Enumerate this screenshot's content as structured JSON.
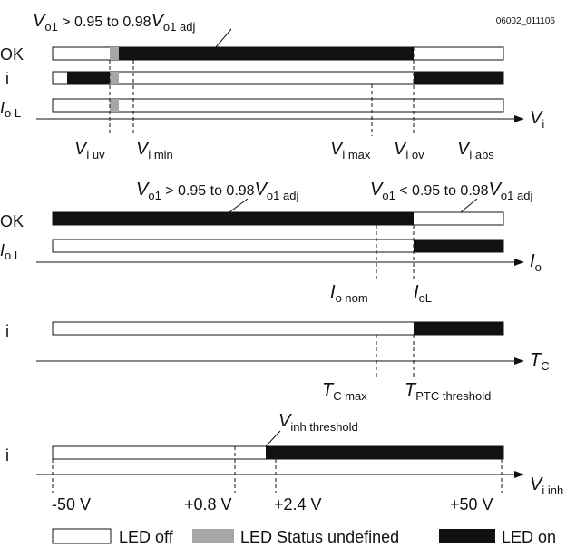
{
  "figure_id": "06002_011106",
  "colors": {
    "off": "#ffffff",
    "undefined": "#a6a6a6",
    "on": "#111111"
  },
  "panel1": {
    "rows": [
      "OK",
      "i",
      "I",
      "o L"
    ],
    "annotation": {
      "V": "V",
      "sub": "o1",
      "mid": " > 0.95 to 0.98",
      "V2": "V",
      "sub2": "o1 adj"
    },
    "axis": {
      "main": "V",
      "sub": "i"
    },
    "ticks": [
      {
        "main": "V",
        "sub": "i uv"
      },
      {
        "main": "V",
        "sub": "i min"
      },
      {
        "main": "V",
        "sub": "i max"
      },
      {
        "main": "V",
        "sub": "i ov"
      },
      {
        "main": "V",
        "sub": "i abs"
      }
    ]
  },
  "panel2": {
    "rows": [
      "OK",
      "I",
      "o L"
    ],
    "annotation_left": {
      "V": "V",
      "sub": "o1",
      "mid": " > 0.95 to 0.98",
      "V2": "V",
      "sub2": "o1 adj"
    },
    "annotation_right": {
      "V": "V",
      "sub": "o1",
      "mid": " < 0.95 to 0.98",
      "V2": "V",
      "sub2": "o1 adj"
    },
    "axis": {
      "main": "I",
      "sub": "o"
    },
    "ticks": [
      {
        "main": "I",
        "sub": "o nom"
      },
      {
        "main": "I",
        "sub": "oL"
      }
    ]
  },
  "panel3": {
    "rows": [
      "i"
    ],
    "axis": {
      "main": "T",
      "sub": "C"
    },
    "ticks": [
      {
        "main": "T",
        "sub": "C max"
      },
      {
        "main": "T",
        "sub": "PTC threshold"
      }
    ]
  },
  "panel4": {
    "rows": [
      "i"
    ],
    "annotation": {
      "main": "V",
      "sub": "inh threshold"
    },
    "axis": {
      "main": "V",
      "sub": "i inh"
    },
    "values": [
      "-50 V",
      "+0.8 V",
      "+2.4 V",
      "+50 V"
    ]
  },
  "legend": [
    "LED off",
    "LED Status undefined",
    "LED on"
  ]
}
